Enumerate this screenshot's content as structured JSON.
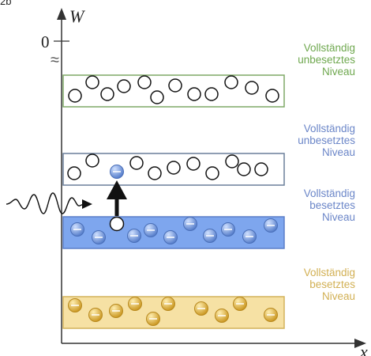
{
  "figure": {
    "corner_text": "2b",
    "y_axis_label": "W",
    "x_axis_label": "x",
    "zero_label": "0",
    "break_mark": "≈"
  },
  "bands": [
    {
      "id": "top",
      "label_lines": [
        "Vollständig",
        "unbesetztes",
        "Niveau"
      ],
      "fill": "#ffffff",
      "stroke": "#7fa867",
      "label_color": "#6fa84f",
      "occupied": false
    },
    {
      "id": "conduction",
      "label_lines": [
        "Vollständig",
        "unbesetztes",
        "Niveau"
      ],
      "fill": "#ffffff",
      "stroke": "#6a7f9a",
      "label_color": "#6b86c8",
      "occupied": false
    },
    {
      "id": "valence",
      "label_lines": [
        "Vollständig",
        "besetztes",
        "Niveau"
      ],
      "fill": "#7ea6ee",
      "stroke": "#5b7fc9",
      "label_color": "#6b86c8",
      "occupied": true
    },
    {
      "id": "core",
      "label_lines": [
        "Vollständig",
        "besetztes",
        "Niveau"
      ],
      "fill": "#f6e1a4",
      "stroke": "#d4b35c",
      "label_color": "#d2b054",
      "occupied": true
    }
  ],
  "colors": {
    "axis": "#333333",
    "electron_blue": "#5e86d6",
    "electron_gold": "#d7a72e",
    "hole_stroke": "#111111",
    "arrow": "#111111"
  },
  "icons": {
    "photon": "wavy-photon-arrow-icon",
    "excitation": "up-arrow-icon"
  }
}
